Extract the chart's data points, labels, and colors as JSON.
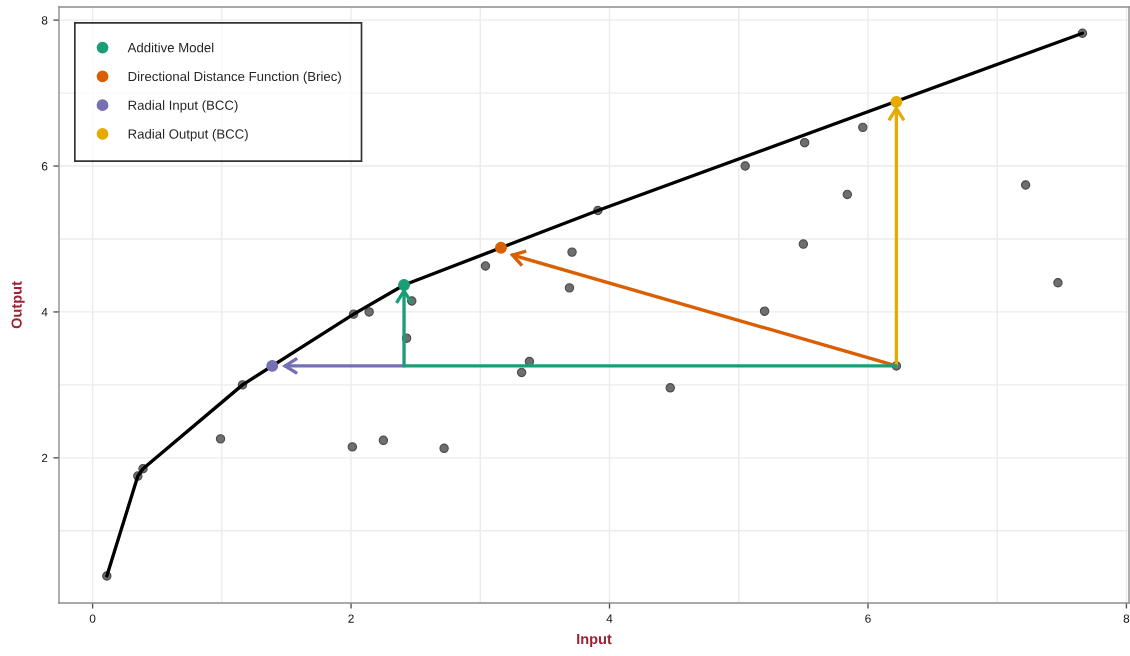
{
  "chart_data": {
    "type": "scatter",
    "xlabel": "Input",
    "ylabel": "Output",
    "xlim": [
      -0.26,
      8.02
    ],
    "ylim": [
      0.01,
      8.18
    ],
    "xticks": [
      0,
      2,
      4,
      6,
      8
    ],
    "yticks": [
      2,
      4,
      6,
      8
    ],
    "grid": true,
    "legend": "top left",
    "series": [
      {
        "color": "#6e6e6e",
        "x": [
          0.11,
          0.35,
          0.39,
          0.99,
          1.16,
          2.01,
          2.02,
          2.14,
          2.25,
          2.43,
          2.47,
          2.72,
          3.04,
          3.32,
          3.38,
          3.69,
          3.71,
          3.91,
          4.47,
          5.05,
          5.2,
          5.5,
          5.51,
          5.84,
          5.96,
          6.22,
          7.22,
          7.47,
          7.66
        ],
        "values": [
          0.38,
          1.75,
          1.85,
          2.26,
          3.0,
          2.15,
          3.97,
          4.0,
          2.24,
          3.64,
          4.15,
          2.13,
          4.63,
          3.17,
          3.32,
          4.33,
          4.82,
          5.39,
          2.96,
          6.0,
          4.01,
          4.93,
          6.32,
          5.61,
          6.53,
          3.26,
          5.74,
          4.4,
          7.82
        ]
      },
      {
        "type": "line",
        "color": "#000000",
        "x": [
          0.11,
          0.35,
          0.39,
          1.16,
          2.02,
          2.41,
          3.91,
          7.66
        ],
        "values": [
          0.38,
          1.75,
          1.85,
          3.0,
          3.97,
          4.37,
          5.39,
          7.82
        ]
      },
      {
        "type": "line",
        "color": "#d95f02",
        "x": [
          6.22,
          3.25
        ],
        "values": [
          3.26,
          4.78
        ]
      },
      {
        "type": "line",
        "color": "#e6ab02",
        "x": [
          6.22,
          6.22
        ],
        "values": [
          3.26,
          6.79
        ]
      },
      {
        "type": "line",
        "color": "#7570b3",
        "x": [
          2.41,
          1.49
        ],
        "values": [
          3.26,
          3.26
        ]
      },
      {
        "type": "line",
        "color": "#1b9e77",
        "x": [
          6.22,
          2.41,
          2.41
        ],
        "values": [
          3.26,
          3.26,
          4.29
        ]
      },
      {
        "name": "Additive Model",
        "color": "#1b9e77",
        "x": [
          2.41
        ],
        "values": [
          4.37
        ]
      },
      {
        "name": "Directional Distance Function (Briec)",
        "color": "#d95f02",
        "x": [
          3.16
        ],
        "values": [
          4.88
        ]
      },
      {
        "name": "Radial Input (BCC)",
        "color": "#7570b3",
        "x": [
          1.39
        ],
        "values": [
          3.26
        ]
      },
      {
        "name": "Radial Output (BCC)",
        "color": "#e6ab02",
        "x": [
          6.22
        ],
        "values": [
          6.88
        ]
      }
    ]
  }
}
